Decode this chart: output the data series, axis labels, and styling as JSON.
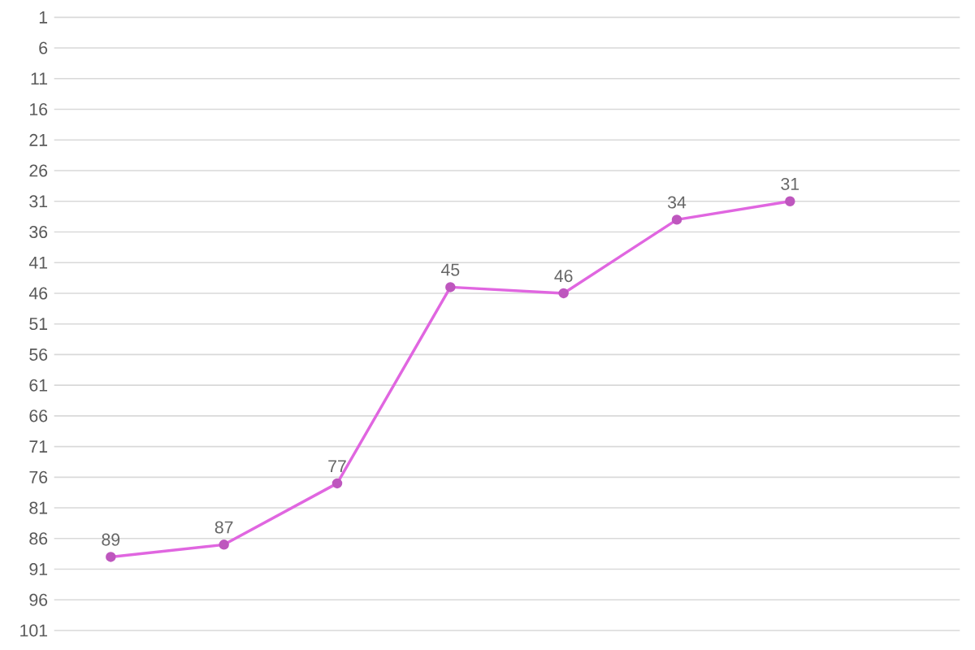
{
  "chart_data": {
    "type": "line",
    "categories": [
      null,
      null,
      null,
      null,
      null,
      null,
      null,
      null
    ],
    "series": [
      {
        "color": "#e066e0",
        "values": [
          89,
          87,
          77,
          45,
          46,
          34,
          31,
          null
        ]
      }
    ],
    "ylim": [
      101,
      1
    ],
    "yticks": [
      1,
      6,
      11,
      16,
      21,
      26,
      31,
      36,
      41,
      46,
      51,
      56,
      61,
      66,
      71,
      76,
      81,
      86,
      91,
      96,
      101
    ],
    "grid": "y",
    "tick_labels": "y",
    "marker": "circle",
    "line_style": "solid",
    "data_labels": true
  }
}
